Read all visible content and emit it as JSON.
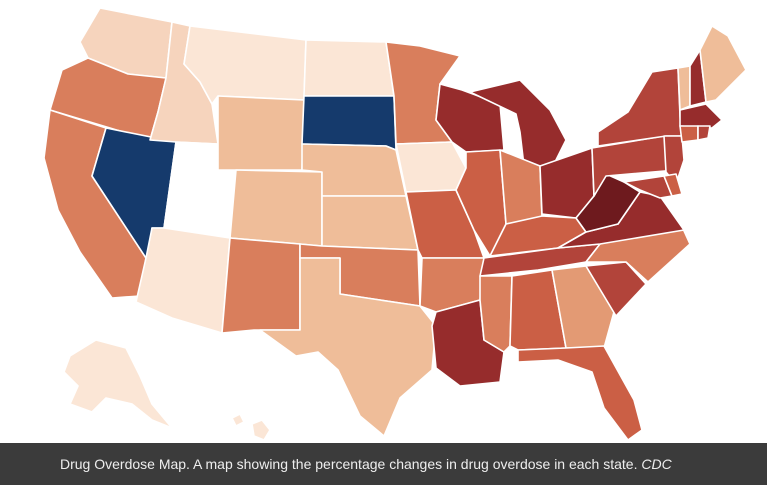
{
  "caption": {
    "text": "Drug Overdose Map. A map showing the percentage changes in drug overdose in each state.",
    "credit": "CDC"
  },
  "palette": {
    "c0": "#fbe6d6",
    "c1": "#f6d4bd",
    "c2": "#efbd99",
    "c3": "#e39a74",
    "c4": "#d97e5c",
    "c5": "#cb5f45",
    "c6": "#b2443a",
    "c7": "#962c2c",
    "c8": "#6e1a1e",
    "decrease_strong": "#153a6c",
    "neutral": "#ffffff"
  },
  "states": [
    {
      "name": "washington",
      "color": "c1"
    },
    {
      "name": "oregon",
      "color": "c4"
    },
    {
      "name": "california",
      "color": "c4"
    },
    {
      "name": "nevada",
      "color": "decrease_strong"
    },
    {
      "name": "idaho",
      "color": "c1"
    },
    {
      "name": "utah",
      "color": "neutral"
    },
    {
      "name": "arizona",
      "color": "c0"
    },
    {
      "name": "montana",
      "color": "c0"
    },
    {
      "name": "wyoming",
      "color": "c2"
    },
    {
      "name": "colorado",
      "color": "c2"
    },
    {
      "name": "new-mexico",
      "color": "c4"
    },
    {
      "name": "north-dakota",
      "color": "c0"
    },
    {
      "name": "south-dakota",
      "color": "decrease_strong"
    },
    {
      "name": "nebraska",
      "color": "c2"
    },
    {
      "name": "kansas",
      "color": "c2"
    },
    {
      "name": "oklahoma",
      "color": "c4"
    },
    {
      "name": "texas",
      "color": "c2"
    },
    {
      "name": "minnesota",
      "color": "c4"
    },
    {
      "name": "iowa",
      "color": "c0"
    },
    {
      "name": "missouri",
      "color": "c5"
    },
    {
      "name": "arkansas",
      "color": "c4"
    },
    {
      "name": "louisiana",
      "color": "c7"
    },
    {
      "name": "wisconsin",
      "color": "c7"
    },
    {
      "name": "illinois",
      "color": "c5"
    },
    {
      "name": "michigan",
      "color": "c7"
    },
    {
      "name": "indiana",
      "color": "c4"
    },
    {
      "name": "ohio",
      "color": "c7"
    },
    {
      "name": "kentucky",
      "color": "c5"
    },
    {
      "name": "tennessee",
      "color": "c6"
    },
    {
      "name": "mississippi",
      "color": "c4"
    },
    {
      "name": "alabama",
      "color": "c5"
    },
    {
      "name": "georgia",
      "color": "c3"
    },
    {
      "name": "florida",
      "color": "c5"
    },
    {
      "name": "south-carolina",
      "color": "c6"
    },
    {
      "name": "north-carolina",
      "color": "c4"
    },
    {
      "name": "virginia",
      "color": "c7"
    },
    {
      "name": "west-virginia",
      "color": "c8"
    },
    {
      "name": "pennsylvania",
      "color": "c6"
    },
    {
      "name": "new-york",
      "color": "c6"
    },
    {
      "name": "new-jersey",
      "color": "c6"
    },
    {
      "name": "maryland",
      "color": "c6"
    },
    {
      "name": "delaware",
      "color": "c5"
    },
    {
      "name": "vermont",
      "color": "c2"
    },
    {
      "name": "new-hampshire",
      "color": "c7"
    },
    {
      "name": "maine",
      "color": "c2"
    },
    {
      "name": "massachusetts",
      "color": "c7"
    },
    {
      "name": "connecticut",
      "color": "c5"
    },
    {
      "name": "rhode-island",
      "color": "c6"
    },
    {
      "name": "alaska",
      "color": "c0"
    },
    {
      "name": "hawaii",
      "color": "c0"
    }
  ]
}
